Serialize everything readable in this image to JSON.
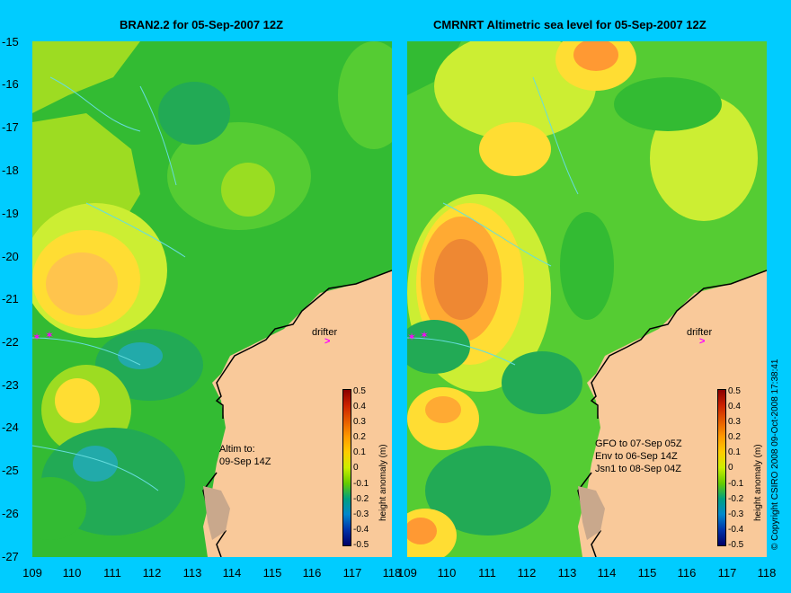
{
  "panels": [
    {
      "title": "BRAN2.2 for 05-Sep-2007 12Z",
      "drifter_label": "drifter",
      "drifter_marker": ">",
      "annotation_lines": [
        "Altim to:",
        "09-Sep 14Z"
      ]
    },
    {
      "title": "CMRNRT Altimetric sea level  for 05-Sep-2007 12Z",
      "drifter_label": "drifter",
      "drifter_marker": ">",
      "annotation_lines": [
        "GFO to 07-Sep 05Z",
        "Env to 06-Sep 14Z",
        "Jsn1 to 08-Sep 04Z"
      ]
    }
  ],
  "axes": {
    "lat_labels": [
      "-15",
      "-16",
      "-17",
      "-18",
      "-19",
      "-20",
      "-21",
      "-22",
      "-23",
      "-24",
      "-25",
      "-26",
      "-27"
    ],
    "lon_labels": [
      "109",
      "110",
      "111",
      "112",
      "113",
      "114",
      "115",
      "116",
      "117",
      "118"
    ]
  },
  "colorbar": {
    "label": "height anomaly (m)",
    "ticks": [
      "0.5",
      "0.4",
      "0.3",
      "0.2",
      "0.1",
      "0",
      "-0.1",
      "-0.2",
      "-0.3",
      "-0.4",
      "-0.5"
    ],
    "colors": [
      "#8b0000",
      "#cc2200",
      "#e65c00",
      "#ff9900",
      "#ffcc00",
      "#ccee00",
      "#66cc00",
      "#00a080",
      "#0088cc",
      "#0033aa",
      "#000066"
    ]
  },
  "colors": {
    "background": "#00ccff",
    "land": "#f9c99a",
    "shore": "#c9a88c",
    "drifter": "#ff00ff"
  },
  "copyright": "© Copyright CSIRO 2008   09-Oct-2008 17:38:41"
}
